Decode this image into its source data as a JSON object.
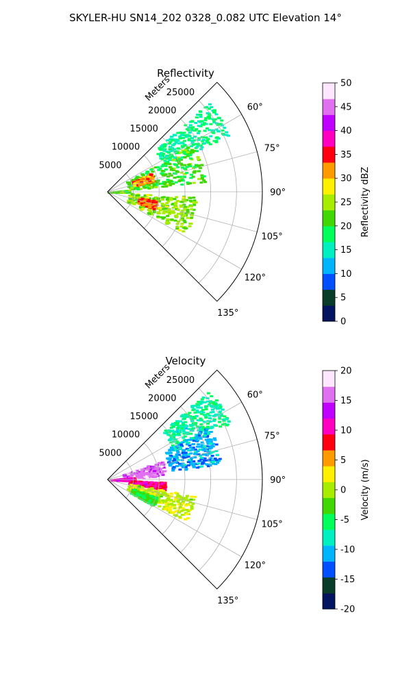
{
  "figure_title": "SKYLER-HU  SN14_202  0328_0.082 UTC Elevation 14°",
  "chart_data": [
    {
      "type": "heatmap",
      "title": "Reflectivity",
      "projection": "polar sector",
      "range_label": "Meters",
      "range_ticks": [
        "5000",
        "10000",
        "15000",
        "20000",
        "25000"
      ],
      "range_max": 30000,
      "azimuth_range_deg": [
        45,
        135
      ],
      "azimuth_ticks": [
        "60°",
        "75°",
        "90°",
        "105°",
        "120°",
        "135°"
      ],
      "grid": true,
      "colorbar": {
        "label": "Reflectivity dBZ",
        "min": 0,
        "max": 50,
        "ticks": [
          "0",
          "5",
          "10",
          "15",
          "20",
          "25",
          "30",
          "35",
          "40",
          "45",
          "50"
        ],
        "colors": [
          "#04145e",
          "#0a3c2a",
          "#0050ff",
          "#00b4ff",
          "#00f0c0",
          "#00ff5a",
          "#40d800",
          "#a8ec00",
          "#fff000",
          "#ff9a00",
          "#ff0010",
          "#ff00c0",
          "#c000ff",
          "#e070f0",
          "#ffe8ff"
        ]
      },
      "echo_regions": [
        {
          "az": [
            48,
            65
          ],
          "range": [
            12000,
            26000
          ],
          "value": 17
        },
        {
          "az": [
            60,
            84
          ],
          "range": [
            4000,
            19000
          ],
          "value": 21
        },
        {
          "az": [
            66,
            76
          ],
          "range": [
            5000,
            9000
          ],
          "value": 32
        },
        {
          "az": [
            84,
            90
          ],
          "range": [
            0,
            4000
          ],
          "value": 22
        },
        {
          "az": [
            93,
            118
          ],
          "range": [
            4000,
            17000
          ],
          "value": 24
        },
        {
          "az": [
            100,
            110
          ],
          "range": [
            6000,
            9500
          ],
          "value": 33
        }
      ]
    },
    {
      "type": "heatmap",
      "title": "Velocity",
      "projection": "polar sector",
      "range_label": "Meters",
      "range_ticks": [
        "5000",
        "10000",
        "15000",
        "20000",
        "25000"
      ],
      "range_max": 30000,
      "azimuth_range_deg": [
        45,
        135
      ],
      "azimuth_ticks": [
        "60°",
        "75°",
        "90°",
        "105°",
        "120°",
        "135°"
      ],
      "grid": true,
      "colorbar": {
        "label": "Velocity (m/s)",
        "min": -20,
        "max": 20,
        "ticks": [
          "-20",
          "-15",
          "-10",
          "-5",
          "0",
          "5",
          "10",
          "15",
          "20"
        ],
        "colors": [
          "#04145e",
          "#0a3c2a",
          "#0050ff",
          "#00b4ff",
          "#00f0c0",
          "#00ff5a",
          "#40d800",
          "#a8ec00",
          "#fff000",
          "#ff9a00",
          "#ff0010",
          "#ff00c0",
          "#c000ff",
          "#e070f0",
          "#ffe8ff"
        ]
      },
      "echo_regions": [
        {
          "az": [
            48,
            65
          ],
          "range": [
            14000,
            26000
          ],
          "value": -7
        },
        {
          "az": [
            62,
            82
          ],
          "range": [
            12000,
            22000
          ],
          "value": -11
        },
        {
          "az": [
            70,
            86
          ],
          "range": [
            3000,
            11000
          ],
          "value": 16
        },
        {
          "az": [
            84,
            92
          ],
          "range": [
            500,
            5000
          ],
          "value": 11
        },
        {
          "az": [
            92,
            100
          ],
          "range": [
            4000,
            11000
          ],
          "value": 10
        },
        {
          "az": [
            100,
            118
          ],
          "range": [
            4000,
            17000
          ],
          "value": 1
        },
        {
          "az": [
            110,
            120
          ],
          "range": [
            5000,
            10000
          ],
          "value": -4
        }
      ]
    }
  ]
}
